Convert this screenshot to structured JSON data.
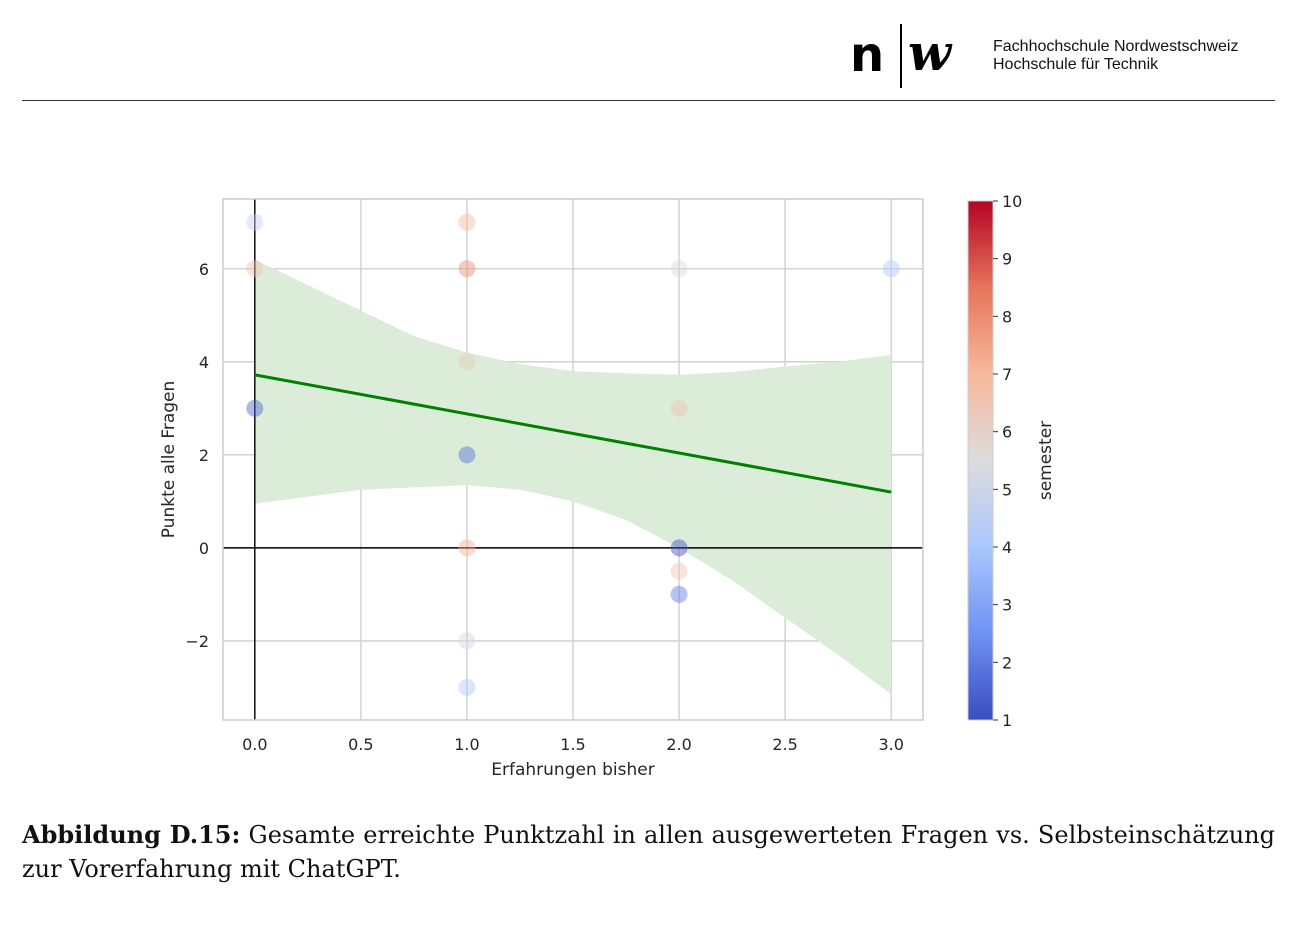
{
  "header": {
    "logo_n": "n",
    "logo_w": "w",
    "institution_line1": "Fachhochschule Nordwestschweiz",
    "institution_line2": "Hochschule für Technik"
  },
  "chart_data": {
    "type": "scatter",
    "xlabel": "Erfahrungen bisher",
    "ylabel": "Punkte alle Fragen",
    "xlim": [
      -0.15,
      3.15
    ],
    "ylim": [
      -3.7,
      7.5
    ],
    "xticks": [
      0.0,
      0.5,
      1.0,
      1.5,
      2.0,
      2.5,
      3.0
    ],
    "xtick_labels": [
      "0.0",
      "0.5",
      "1.0",
      "1.5",
      "2.0",
      "2.5",
      "3.0"
    ],
    "yticks": [
      -2,
      0,
      2,
      4,
      6
    ],
    "ytick_labels": [
      "−2",
      "0",
      "2",
      "4",
      "6"
    ],
    "grid": true,
    "points": [
      {
        "x": 0,
        "y": 7,
        "semester": 4.6
      },
      {
        "x": 0,
        "y": 6,
        "semester": 6.6
      },
      {
        "x": 0,
        "y": 3,
        "semester": 1.5
      },
      {
        "x": 1,
        "y": 7,
        "semester": 7.0
      },
      {
        "x": 1,
        "y": 6,
        "semester": 8.0
      },
      {
        "x": 1,
        "y": 4,
        "semester": 6.3
      },
      {
        "x": 1,
        "y": 2,
        "semester": 1.7
      },
      {
        "x": 1,
        "y": 0,
        "semester": 7.2
      },
      {
        "x": 1,
        "y": -2,
        "semester": 5.2
      },
      {
        "x": 1,
        "y": -3,
        "semester": 4.0
      },
      {
        "x": 2,
        "y": 6,
        "semester": 5.3
      },
      {
        "x": 2,
        "y": 3,
        "semester": 6.5
      },
      {
        "x": 2,
        "y": 0,
        "semester": 1.0
      },
      {
        "x": 2,
        "y": -0.5,
        "semester": 6.5
      },
      {
        "x": 2,
        "y": -1,
        "semester": 2.0
      },
      {
        "x": 3,
        "y": 6,
        "semester": 4.0
      }
    ],
    "regression": {
      "x": [
        0,
        3
      ],
      "y": [
        3.72,
        1.2
      ],
      "color": "#008000"
    },
    "confidence_band": {
      "x": [
        0,
        0.25,
        0.5,
        0.75,
        1.0,
        1.25,
        1.5,
        1.75,
        2.0,
        2.25,
        2.5,
        2.75,
        3.0
      ],
      "upper": [
        6.2,
        5.65,
        5.1,
        4.55,
        4.2,
        3.95,
        3.8,
        3.75,
        3.72,
        3.78,
        3.9,
        4.0,
        4.15
      ],
      "lower": [
        0.95,
        1.1,
        1.25,
        1.3,
        1.35,
        1.25,
        1.0,
        0.6,
        0.0,
        -0.7,
        -1.5,
        -2.3,
        -3.15
      ],
      "color": "#d9ecd6"
    },
    "colorbar": {
      "label": "semester",
      "min": 1,
      "max": 10,
      "ticks": [
        1,
        2,
        3,
        4,
        5,
        6,
        7,
        8,
        9,
        10
      ],
      "colormap": "coolwarm",
      "stops": [
        "#3b4cc0",
        "#6f92f3",
        "#aac7fd",
        "#dddcdc",
        "#f7b89c",
        "#e7745b",
        "#b40426"
      ]
    },
    "colors": {
      "grid": "#cccccc",
      "axis_zero": "#000000",
      "frame": "#cccccc",
      "text": "#262626"
    }
  },
  "caption": {
    "label": "Abbildung D.15:",
    "text": "Gesamte erreichte Punktzahl in allen ausgewerteten Fragen vs. Selbsteinschätzung zur Vorerfahrung mit ChatGPT."
  }
}
